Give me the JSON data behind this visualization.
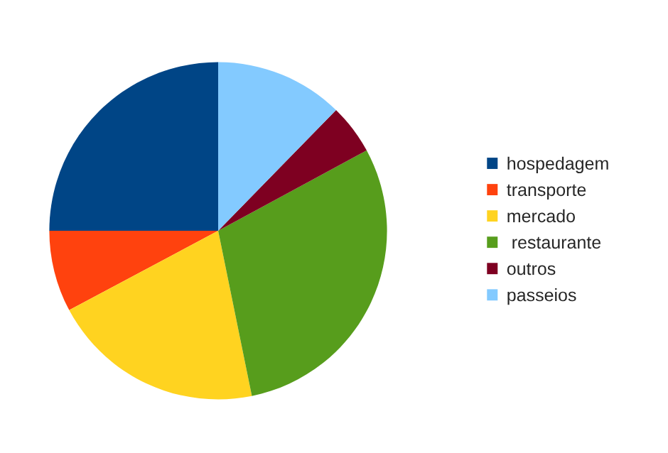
{
  "chart_data": {
    "type": "pie",
    "categories": [
      "hospedagem",
      "transporte",
      "mercado",
      " restaurante",
      "outros",
      "passeios"
    ],
    "values": [
      25.0,
      7.8,
      20.4,
      29.7,
      4.8,
      12.3
    ],
    "colors": [
      "#004586",
      "#ff420e",
      "#ffd320",
      "#579d1c",
      "#7e0021",
      "#83caff"
    ],
    "legend": "right"
  }
}
